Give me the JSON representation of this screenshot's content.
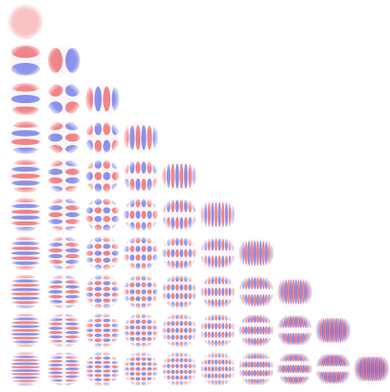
{
  "figure": {
    "kind": "spherical harmonics grid",
    "degrees": [
      0,
      1,
      2,
      3,
      4,
      5,
      6,
      7,
      8,
      9
    ],
    "orders_per_row": "m = 0 … l",
    "colors": {
      "positive": "#e8202a",
      "negative": "#2a3be0",
      "background": "#ffffff"
    }
  }
}
